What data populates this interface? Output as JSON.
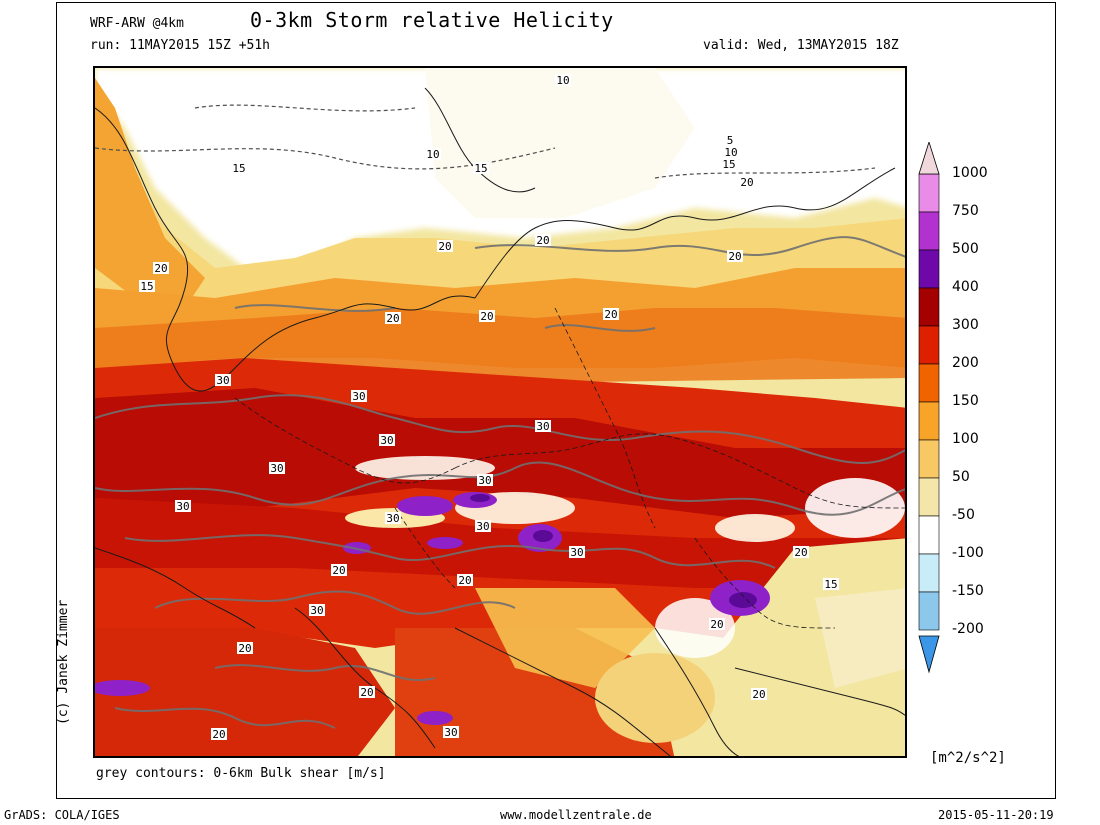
{
  "header": {
    "model": "WRF-ARW @4km",
    "title": "0-3km Storm relative Helicity",
    "run": "run: 11MAY2015 15Z +51h",
    "valid": "valid: Wed, 13MAY2015 18Z"
  },
  "footer": {
    "contour_note": "grey contours: 0-6km Bulk shear [m/s]",
    "grads": "GrADS: COLA/IGES",
    "website": "www.modellzentrale.de",
    "timestamp": "2015-05-11-20:19",
    "copyright": "(c) Janek Zimmer"
  },
  "colorbar": {
    "unit": "[m^2/s^2]",
    "labels": [
      "1000",
      "750",
      "500",
      "400",
      "300",
      "200",
      "150",
      "100",
      "50",
      "-50",
      "-100",
      "-150",
      "-200"
    ],
    "colors": [
      "#f0d8dc",
      "#e88ce8",
      "#b232cf",
      "#6e08a8",
      "#a40000",
      "#dc2000",
      "#f06400",
      "#f8a428",
      "#f8c864",
      "#f4e6a8",
      "#ffffff",
      "#c8ecf8",
      "#8cc8ec",
      "#3c96e8"
    ]
  },
  "contour_labels": [
    "10",
    "10",
    "15",
    "15",
    "5",
    "10",
    "15",
    "20",
    "20",
    "20",
    "20",
    "15",
    "20",
    "20",
    "20",
    "20",
    "30",
    "30",
    "30",
    "30",
    "30",
    "30",
    "30",
    "30",
    "30",
    "20",
    "30",
    "20",
    "15",
    "20",
    "30",
    "20",
    "20",
    "20",
    "20",
    "30",
    "20"
  ]
}
